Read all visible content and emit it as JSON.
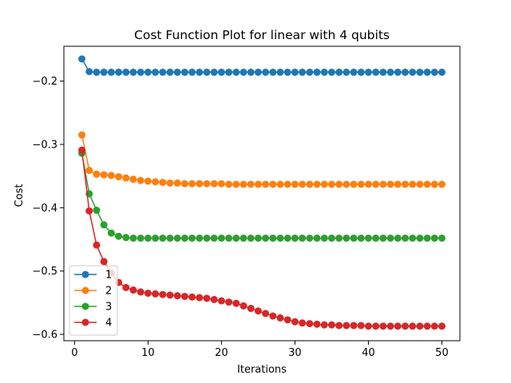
{
  "chart_data": {
    "type": "line",
    "title": "Cost Function Plot for linear with 4 qubits",
    "xlabel": "Iterations",
    "ylabel": "Cost",
    "xlim": [
      -1.45,
      52.45
    ],
    "ylim": [
      -0.61,
      -0.145
    ],
    "xticks": [
      0,
      10,
      20,
      30,
      40,
      50
    ],
    "xtick_labels": [
      "0",
      "10",
      "20",
      "30",
      "40",
      "50"
    ],
    "yticks": [
      -0.6,
      -0.5,
      -0.4,
      -0.3,
      -0.2
    ],
    "ytick_labels": [
      "−0.6",
      "−0.5",
      "−0.4",
      "−0.3",
      "−0.2"
    ],
    "grid": false,
    "legend_position": "lower-left",
    "x": [
      1,
      2,
      3,
      4,
      5,
      6,
      7,
      8,
      9,
      10,
      11,
      12,
      13,
      14,
      15,
      16,
      17,
      18,
      19,
      20,
      21,
      22,
      23,
      24,
      25,
      26,
      27,
      28,
      29,
      30,
      31,
      32,
      33,
      34,
      35,
      36,
      37,
      38,
      39,
      40,
      41,
      42,
      43,
      44,
      45,
      46,
      47,
      48,
      49,
      50
    ],
    "series": [
      {
        "name": "1",
        "color": "#1f77b4",
        "values": [
          -0.165,
          -0.185,
          -0.186,
          -0.186,
          -0.186,
          -0.186,
          -0.186,
          -0.186,
          -0.186,
          -0.186,
          -0.186,
          -0.186,
          -0.186,
          -0.186,
          -0.186,
          -0.186,
          -0.186,
          -0.186,
          -0.186,
          -0.186,
          -0.186,
          -0.186,
          -0.186,
          -0.186,
          -0.186,
          -0.186,
          -0.186,
          -0.186,
          -0.186,
          -0.186,
          -0.186,
          -0.186,
          -0.186,
          -0.186,
          -0.186,
          -0.186,
          -0.186,
          -0.186,
          -0.186,
          -0.186,
          -0.186,
          -0.186,
          -0.186,
          -0.186,
          -0.186,
          -0.186,
          -0.186,
          -0.186,
          -0.186,
          -0.186
        ]
      },
      {
        "name": "2",
        "color": "#ff7f0e",
        "values": [
          -0.285,
          -0.341,
          -0.347,
          -0.348,
          -0.349,
          -0.351,
          -0.353,
          -0.355,
          -0.357,
          -0.358,
          -0.359,
          -0.36,
          -0.361,
          -0.361,
          -0.362,
          -0.362,
          -0.362,
          -0.362,
          -0.362,
          -0.362,
          -0.363,
          -0.363,
          -0.363,
          -0.363,
          -0.363,
          -0.363,
          -0.363,
          -0.363,
          -0.363,
          -0.363,
          -0.363,
          -0.363,
          -0.363,
          -0.363,
          -0.363,
          -0.363,
          -0.363,
          -0.363,
          -0.363,
          -0.363,
          -0.363,
          -0.363,
          -0.363,
          -0.363,
          -0.363,
          -0.363,
          -0.363,
          -0.363,
          -0.363,
          -0.363
        ]
      },
      {
        "name": "3",
        "color": "#2ca02c",
        "values": [
          -0.314,
          -0.378,
          -0.404,
          -0.427,
          -0.44,
          -0.445,
          -0.447,
          -0.448,
          -0.448,
          -0.448,
          -0.448,
          -0.448,
          -0.448,
          -0.448,
          -0.448,
          -0.448,
          -0.448,
          -0.448,
          -0.448,
          -0.448,
          -0.448,
          -0.448,
          -0.448,
          -0.448,
          -0.448,
          -0.448,
          -0.448,
          -0.448,
          -0.448,
          -0.448,
          -0.448,
          -0.448,
          -0.448,
          -0.448,
          -0.448,
          -0.448,
          -0.448,
          -0.448,
          -0.448,
          -0.448,
          -0.448,
          -0.448,
          -0.448,
          -0.448,
          -0.448,
          -0.448,
          -0.448,
          -0.448,
          -0.448,
          -0.448
        ]
      },
      {
        "name": "4",
        "color": "#d62728",
        "values": [
          -0.309,
          -0.405,
          -0.459,
          -0.485,
          -0.503,
          -0.518,
          -0.526,
          -0.53,
          -0.533,
          -0.535,
          -0.536,
          -0.537,
          -0.538,
          -0.539,
          -0.54,
          -0.541,
          -0.542,
          -0.543,
          -0.545,
          -0.547,
          -0.549,
          -0.551,
          -0.555,
          -0.559,
          -0.563,
          -0.567,
          -0.571,
          -0.574,
          -0.577,
          -0.58,
          -0.582,
          -0.583,
          -0.584,
          -0.585,
          -0.585,
          -0.586,
          -0.586,
          -0.586,
          -0.586,
          -0.587,
          -0.587,
          -0.587,
          -0.587,
          -0.587,
          -0.587,
          -0.587,
          -0.587,
          -0.587,
          -0.587,
          -0.587
        ]
      }
    ]
  }
}
